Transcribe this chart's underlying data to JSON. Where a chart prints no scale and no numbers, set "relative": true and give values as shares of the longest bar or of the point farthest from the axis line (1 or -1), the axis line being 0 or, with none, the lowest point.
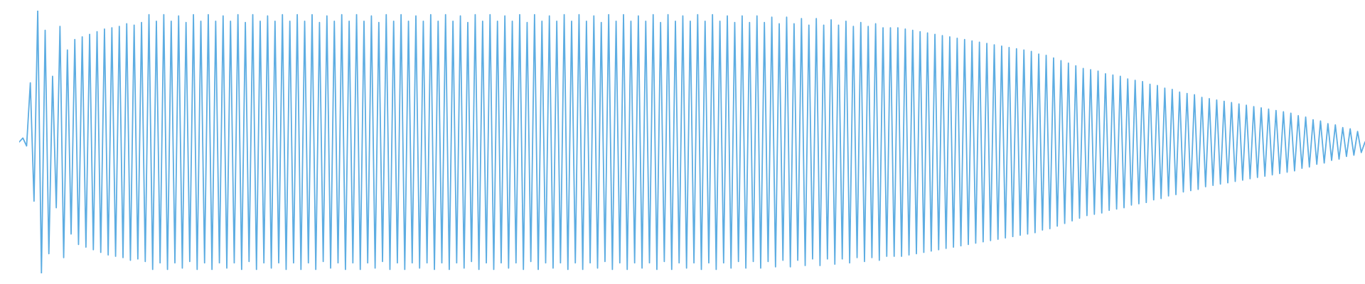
{
  "chart_data": {
    "type": "line",
    "relative": true,
    "marker": "none",
    "line_style": "solid",
    "categories": [
      null,
      null,
      null,
      null,
      null,
      null,
      null,
      null,
      null,
      null,
      null,
      null,
      null,
      null,
      null,
      null,
      null,
      null,
      null,
      null,
      null,
      null,
      null,
      null,
      null,
      null,
      null,
      null,
      null,
      null,
      null,
      null,
      null,
      null,
      null,
      null,
      null,
      null,
      null,
      null,
      null,
      null,
      null,
      null,
      null,
      null,
      null,
      null,
      null,
      null,
      null,
      null,
      null,
      null,
      null,
      null,
      null,
      null,
      null,
      null,
      null,
      null,
      null,
      null,
      null,
      null,
      null,
      null,
      null,
      null,
      null,
      null,
      null,
      null,
      null,
      null,
      null,
      null,
      null,
      null,
      null,
      null,
      null,
      null,
      null,
      null,
      null,
      null,
      null,
      null,
      null,
      null,
      null,
      null,
      null,
      null,
      null,
      null,
      null,
      null,
      null,
      null,
      null,
      null,
      null,
      null,
      null,
      null,
      null,
      null,
      null,
      null,
      null,
      null,
      null,
      null,
      null,
      null,
      null,
      null,
      null,
      null,
      null,
      null,
      null,
      null,
      null,
      null,
      null,
      null,
      null,
      null,
      null,
      null,
      null,
      null,
      null,
      null,
      null,
      null,
      null,
      null,
      null,
      null,
      null,
      null,
      null,
      null,
      null,
      null,
      null,
      null,
      null,
      null,
      null,
      null,
      null,
      null,
      null,
      null,
      null,
      null,
      null,
      null,
      null,
      null,
      null,
      null,
      null,
      null,
      null,
      null,
      null,
      null,
      null,
      null,
      null,
      null,
      null,
      null,
      null,
      null,
      null,
      null,
      null,
      null,
      null,
      null,
      null,
      null,
      null,
      null,
      null,
      null,
      null,
      null,
      null,
      null,
      null,
      null,
      null,
      null,
      null,
      null,
      null,
      null,
      null,
      null,
      null,
      null,
      null,
      null,
      null,
      null,
      null,
      null,
      null,
      null,
      null,
      null,
      null,
      null,
      null,
      null,
      null,
      null,
      null,
      null,
      null,
      null,
      null,
      null,
      null,
      null,
      null,
      null,
      null,
      null,
      null,
      null,
      null,
      null,
      null,
      null,
      null,
      null,
      null,
      null,
      null,
      null,
      null,
      null,
      null,
      null,
      null,
      null,
      null,
      null,
      null,
      null,
      null,
      null,
      null,
      null,
      null,
      null,
      null,
      null,
      null,
      null,
      null,
      null,
      null,
      null,
      null,
      null,
      null,
      null,
      null,
      null,
      null,
      null,
      null,
      null,
      null,
      null,
      null,
      null,
      null,
      null,
      null,
      null,
      null,
      null,
      null,
      null,
      null,
      null,
      null,
      null,
      null,
      null,
      null,
      null,
      null,
      null,
      null,
      null,
      null,
      null,
      null,
      null,
      null,
      null,
      null,
      null,
      null,
      null,
      null,
      null,
      null,
      null,
      null,
      null,
      null,
      null,
      null,
      null,
      null,
      null,
      null,
      null,
      null,
      null,
      null,
      null,
      null,
      null,
      null,
      null,
      null,
      null,
      null,
      null,
      null,
      null,
      null,
      null,
      null,
      null,
      null,
      null,
      null,
      null,
      null,
      null,
      null,
      null,
      null,
      null,
      null,
      null,
      null,
      null
    ],
    "series": [
      {
        "color": "#5dade2",
        "values": [
          0.5,
          0.515,
          0.485,
          0.725,
          0.275,
          1.0,
          0.0,
          0.925,
          0.075,
          0.75,
          0.25,
          0.94,
          0.06,
          0.85,
          0.15,
          0.89,
          0.11,
          0.9,
          0.1,
          0.91,
          0.09,
          0.92,
          0.08,
          0.93,
          0.07,
          0.935,
          0.065,
          0.94,
          0.06,
          0.95,
          0.05,
          0.945,
          0.055,
          0.955,
          0.045,
          0.985,
          0.015,
          0.96,
          0.04,
          0.985,
          0.015,
          0.96,
          0.04,
          0.98,
          0.02,
          0.955,
          0.045,
          0.985,
          0.015,
          0.96,
          0.04,
          0.985,
          0.015,
          0.96,
          0.04,
          0.98,
          0.02,
          0.96,
          0.04,
          0.985,
          0.015,
          0.955,
          0.045,
          0.985,
          0.015,
          0.96,
          0.04,
          0.98,
          0.02,
          0.96,
          0.04,
          0.985,
          0.015,
          0.96,
          0.04,
          0.985,
          0.015,
          0.96,
          0.04,
          0.985,
          0.015,
          0.955,
          0.045,
          0.98,
          0.02,
          0.96,
          0.04,
          0.985,
          0.015,
          0.96,
          0.04,
          0.985,
          0.015,
          0.96,
          0.04,
          0.98,
          0.02,
          0.955,
          0.045,
          0.985,
          0.015,
          0.96,
          0.04,
          0.985,
          0.015,
          0.96,
          0.04,
          0.98,
          0.02,
          0.96,
          0.04,
          0.985,
          0.015,
          0.96,
          0.04,
          0.985,
          0.015,
          0.96,
          0.04,
          0.98,
          0.02,
          0.955,
          0.045,
          0.985,
          0.015,
          0.96,
          0.04,
          0.985,
          0.015,
          0.96,
          0.04,
          0.98,
          0.02,
          0.96,
          0.04,
          0.985,
          0.015,
          0.955,
          0.045,
          0.985,
          0.015,
          0.96,
          0.04,
          0.98,
          0.02,
          0.96,
          0.04,
          0.985,
          0.015,
          0.96,
          0.04,
          0.985,
          0.015,
          0.96,
          0.04,
          0.98,
          0.02,
          0.955,
          0.045,
          0.985,
          0.015,
          0.96,
          0.04,
          0.985,
          0.015,
          0.96,
          0.04,
          0.98,
          0.02,
          0.96,
          0.04,
          0.985,
          0.015,
          0.955,
          0.045,
          0.985,
          0.015,
          0.96,
          0.04,
          0.98,
          0.02,
          0.96,
          0.04,
          0.985,
          0.015,
          0.96,
          0.04,
          0.985,
          0.015,
          0.96,
          0.04,
          0.98,
          0.02,
          0.955,
          0.045,
          0.98,
          0.02,
          0.955,
          0.045,
          0.98,
          0.02,
          0.955,
          0.045,
          0.975,
          0.025,
          0.95,
          0.05,
          0.975,
          0.025,
          0.95,
          0.05,
          0.97,
          0.03,
          0.945,
          0.055,
          0.97,
          0.03,
          0.945,
          0.055,
          0.965,
          0.035,
          0.945,
          0.055,
          0.96,
          0.04,
          0.94,
          0.06,
          0.955,
          0.045,
          0.94,
          0.06,
          0.95,
          0.05,
          0.935,
          0.065,
          0.935,
          0.065,
          0.935,
          0.065,
          0.93,
          0.07,
          0.925,
          0.075,
          0.92,
          0.08,
          0.915,
          0.085,
          0.91,
          0.09,
          0.905,
          0.095,
          0.9,
          0.1,
          0.895,
          0.105,
          0.89,
          0.11,
          0.885,
          0.115,
          0.88,
          0.12,
          0.875,
          0.125,
          0.87,
          0.13,
          0.865,
          0.135,
          0.86,
          0.14,
          0.855,
          0.145,
          0.85,
          0.15,
          0.845,
          0.155,
          0.835,
          0.165,
          0.83,
          0.17,
          0.82,
          0.18,
          0.81,
          0.19,
          0.8,
          0.2,
          0.79,
          0.21,
          0.78,
          0.22,
          0.775,
          0.225,
          0.77,
          0.23,
          0.76,
          0.24,
          0.755,
          0.245,
          0.75,
          0.25,
          0.74,
          0.26,
          0.735,
          0.265,
          0.73,
          0.27,
          0.72,
          0.28,
          0.715,
          0.285,
          0.705,
          0.295,
          0.7,
          0.3,
          0.69,
          0.31,
          0.685,
          0.315,
          0.68,
          0.32,
          0.67,
          0.33,
          0.665,
          0.335,
          0.66,
          0.34,
          0.655,
          0.345,
          0.65,
          0.35,
          0.645,
          0.355,
          0.64,
          0.36,
          0.635,
          0.365,
          0.63,
          0.37,
          0.625,
          0.375,
          0.62,
          0.38,
          0.615,
          0.385,
          0.61,
          0.39,
          0.6,
          0.4,
          0.595,
          0.405,
          0.585,
          0.415,
          0.58,
          0.42,
          0.57,
          0.43,
          0.565,
          0.435,
          0.555,
          0.445,
          0.55,
          0.45,
          0.54,
          0.46,
          0.5
        ]
      }
    ]
  }
}
